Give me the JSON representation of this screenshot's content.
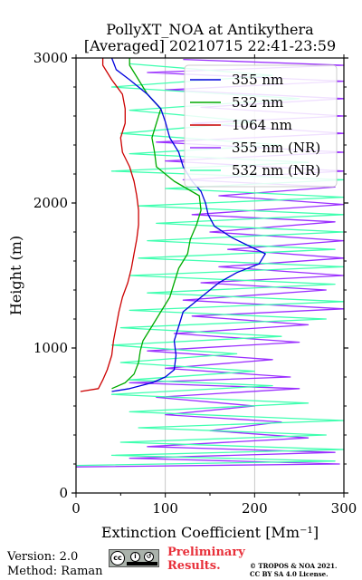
{
  "chart_data": {
    "type": "line",
    "title": "PollyXT_NOA at Antikythera",
    "subtitle": "[Averaged] 20210715 22:41-23:59",
    "xlabel": "Extinction Coefficient [Mm⁻¹]",
    "ylabel": "Height (m)",
    "xlim": [
      0,
      300
    ],
    "ylim": [
      0,
      3000
    ],
    "xticks": [
      "0",
      "100",
      "200",
      "300"
    ],
    "yticks": [
      "0",
      "1000",
      "2000",
      "3000"
    ],
    "grid": true,
    "legend_position": "top-right",
    "series": [
      {
        "name": "355 nm",
        "color": "#0000dd",
        "points": [
          [
            40,
            700
          ],
          [
            60,
            720
          ],
          [
            85,
            760
          ],
          [
            100,
            800
          ],
          [
            110,
            850
          ],
          [
            112,
            950
          ],
          [
            110,
            1050
          ],
          [
            115,
            1150
          ],
          [
            120,
            1250
          ],
          [
            140,
            1350
          ],
          [
            160,
            1450
          ],
          [
            180,
            1520
          ],
          [
            205,
            1580
          ],
          [
            212,
            1650
          ],
          [
            195,
            1700
          ],
          [
            175,
            1760
          ],
          [
            155,
            1840
          ],
          [
            148,
            1920
          ],
          [
            145,
            2000
          ],
          [
            140,
            2080
          ],
          [
            130,
            2150
          ],
          [
            120,
            2250
          ],
          [
            115,
            2350
          ],
          [
            105,
            2450
          ],
          [
            100,
            2560
          ],
          [
            95,
            2650
          ],
          [
            80,
            2750
          ],
          [
            60,
            2850
          ],
          [
            45,
            2920
          ],
          [
            40,
            3000
          ]
        ]
      },
      {
        "name": "532 nm",
        "color": "#00aa00",
        "points": [
          [
            40,
            720
          ],
          [
            55,
            760
          ],
          [
            65,
            820
          ],
          [
            70,
            900
          ],
          [
            72,
            980
          ],
          [
            75,
            1050
          ],
          [
            85,
            1150
          ],
          [
            95,
            1250
          ],
          [
            105,
            1350
          ],
          [
            110,
            1450
          ],
          [
            115,
            1550
          ],
          [
            125,
            1650
          ],
          [
            128,
            1750
          ],
          [
            135,
            1850
          ],
          [
            140,
            1950
          ],
          [
            138,
            2050
          ],
          [
            110,
            2150
          ],
          [
            90,
            2250
          ],
          [
            88,
            2350
          ],
          [
            85,
            2450
          ],
          [
            90,
            2550
          ],
          [
            95,
            2650
          ],
          [
            80,
            2750
          ],
          [
            70,
            2850
          ],
          [
            60,
            2950
          ],
          [
            60,
            3000
          ]
        ]
      },
      {
        "name": "1064 nm",
        "color": "#cc0000",
        "points": [
          [
            5,
            700
          ],
          [
            25,
            720
          ],
          [
            30,
            780
          ],
          [
            35,
            850
          ],
          [
            40,
            950
          ],
          [
            42,
            1050
          ],
          [
            45,
            1150
          ],
          [
            48,
            1250
          ],
          [
            52,
            1350
          ],
          [
            58,
            1450
          ],
          [
            62,
            1550
          ],
          [
            65,
            1650
          ],
          [
            68,
            1750
          ],
          [
            70,
            1850
          ],
          [
            70,
            1950
          ],
          [
            68,
            2050
          ],
          [
            65,
            2150
          ],
          [
            60,
            2250
          ],
          [
            52,
            2350
          ],
          [
            50,
            2450
          ],
          [
            55,
            2550
          ],
          [
            55,
            2650
          ],
          [
            52,
            2750
          ],
          [
            40,
            2850
          ],
          [
            30,
            2950
          ],
          [
            30,
            3000
          ]
        ]
      },
      {
        "name": "355 nm (NR)",
        "color": "#9b30ff",
        "points": [
          [
            0,
            180
          ],
          [
            295,
            200
          ],
          [
            60,
            240
          ],
          [
            290,
            280
          ],
          [
            80,
            320
          ],
          [
            260,
            380
          ],
          [
            150,
            430
          ],
          [
            230,
            490
          ],
          [
            100,
            540
          ],
          [
            200,
            600
          ],
          [
            90,
            660
          ],
          [
            250,
            720
          ],
          [
            60,
            760
          ],
          [
            240,
            800
          ],
          [
            100,
            860
          ],
          [
            220,
            920
          ],
          [
            80,
            980
          ],
          [
            250,
            1040
          ],
          [
            110,
            1100
          ],
          [
            260,
            1160
          ],
          [
            130,
            1220
          ],
          [
            300,
            1270
          ],
          [
            120,
            1330
          ],
          [
            280,
            1400
          ],
          [
            140,
            1450
          ],
          [
            300,
            1500
          ],
          [
            160,
            1560
          ],
          [
            300,
            1620
          ],
          [
            170,
            1680
          ],
          [
            300,
            1740
          ],
          [
            150,
            1800
          ],
          [
            290,
            1870
          ],
          [
            130,
            1920
          ],
          [
            300,
            1990
          ],
          [
            160,
            2050
          ],
          [
            290,
            2110
          ],
          [
            120,
            2160
          ],
          [
            300,
            2220
          ],
          [
            100,
            2290
          ],
          [
            300,
            2350
          ],
          [
            90,
            2420
          ],
          [
            300,
            2480
          ],
          [
            130,
            2550
          ],
          [
            300,
            2600
          ],
          [
            140,
            2660
          ],
          [
            300,
            2720
          ],
          [
            100,
            2780
          ],
          [
            300,
            2840
          ],
          [
            80,
            2900
          ],
          [
            300,
            2950
          ],
          [
            120,
            2990
          ]
        ]
      },
      {
        "name": "532 nm (NR)",
        "color": "#40ffb0",
        "points": [
          [
            0,
            190
          ],
          [
            290,
            220
          ],
          [
            40,
            260
          ],
          [
            300,
            300
          ],
          [
            50,
            350
          ],
          [
            280,
            400
          ],
          [
            70,
            450
          ],
          [
            300,
            500
          ],
          [
            60,
            560
          ],
          [
            260,
            620
          ],
          [
            40,
            680
          ],
          [
            220,
            740
          ],
          [
            60,
            780
          ],
          [
            200,
            840
          ],
          [
            50,
            900
          ],
          [
            180,
            960
          ],
          [
            40,
            1020
          ],
          [
            230,
            1080
          ],
          [
            50,
            1140
          ],
          [
            280,
            1200
          ],
          [
            60,
            1260
          ],
          [
            300,
            1320
          ],
          [
            80,
            1380
          ],
          [
            290,
            1440
          ],
          [
            60,
            1500
          ],
          [
            300,
            1560
          ],
          [
            70,
            1620
          ],
          [
            290,
            1680
          ],
          [
            80,
            1740
          ],
          [
            300,
            1800
          ],
          [
            90,
            1860
          ],
          [
            300,
            1920
          ],
          [
            70,
            1980
          ],
          [
            300,
            2040
          ],
          [
            100,
            2100
          ],
          [
            300,
            2160
          ],
          [
            40,
            2220
          ],
          [
            260,
            2280
          ],
          [
            60,
            2340
          ],
          [
            230,
            2400
          ],
          [
            50,
            2480
          ],
          [
            200,
            2560
          ],
          [
            60,
            2640
          ],
          [
            250,
            2720
          ],
          [
            40,
            2800
          ],
          [
            220,
            2880
          ],
          [
            60,
            2960
          ]
        ]
      }
    ]
  },
  "footer": {
    "version": "Version: 2.0",
    "method": "Method: Raman",
    "cc_mark": "cc",
    "cc_by": "i",
    "cc_sa": "↺",
    "preliminary": "Preliminary\nResults.",
    "copyright": "© TROPOS & NOA 2021.\nCC BY SA 4.0 License."
  }
}
